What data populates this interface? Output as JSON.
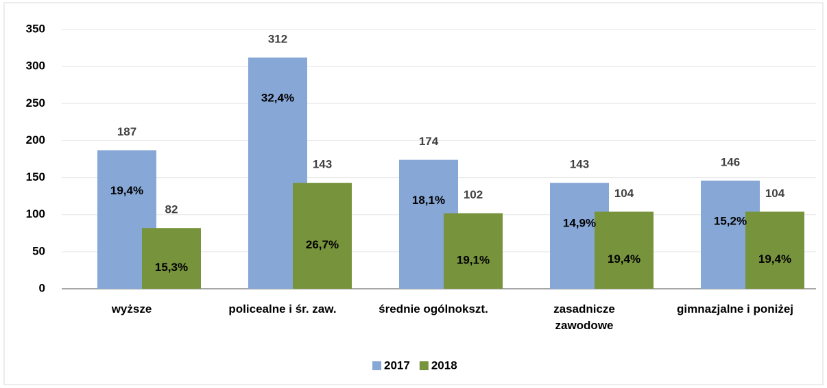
{
  "chart_data": {
    "type": "bar",
    "categories": [
      "wyższe",
      "policealne i śr. zaw.",
      "średnie ogólnokszt.",
      "zasadnicze\nzawodowe",
      "gimnazjalne i poniżej"
    ],
    "series": [
      {
        "name": "2017",
        "color": "#87a7d6",
        "values": [
          187,
          312,
          174,
          143,
          146
        ],
        "share_labels": [
          "19,4%",
          "32,4%",
          "18,1%",
          "14,9%",
          "15,2%"
        ]
      },
      {
        "name": "2018",
        "color": "#77933c",
        "values": [
          82,
          143,
          102,
          104,
          104
        ],
        "share_labels": [
          "15,3%",
          "26,7%",
          "19,1%",
          "19,4%",
          "19,4%"
        ]
      }
    ],
    "ylim": [
      0,
      350
    ],
    "yticks": [
      0,
      50,
      100,
      150,
      200,
      250,
      300,
      350
    ],
    "grid": true,
    "legend": "bottom"
  }
}
